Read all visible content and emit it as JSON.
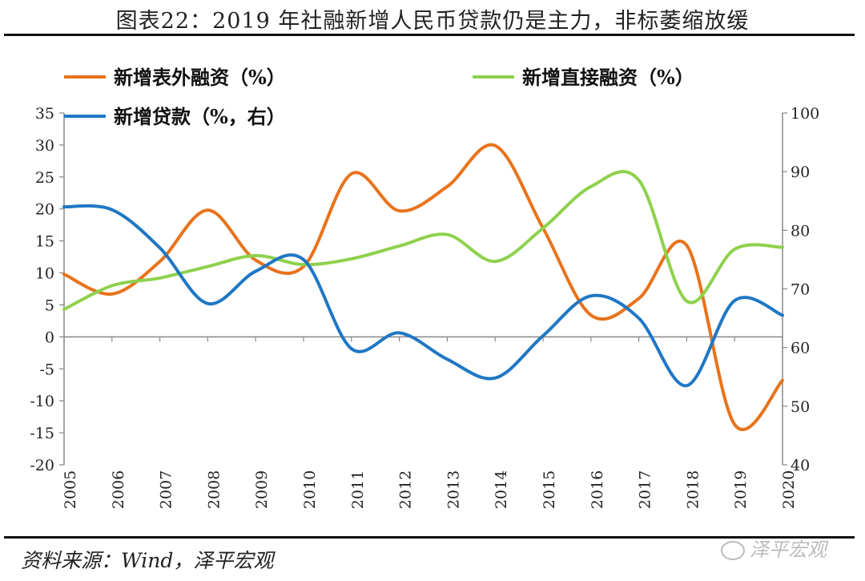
{
  "header": {
    "title": "图表22：2019 年社融新增人民币贷款仍是主力，非标萎缩放缓"
  },
  "footer": {
    "source": "资料来源：Wind，泽平宏观",
    "watermark": "泽平宏观"
  },
  "chart_data": {
    "type": "line",
    "title": "",
    "x": [
      "2005",
      "2006",
      "2007",
      "2008",
      "2009",
      "2010",
      "2011",
      "2012",
      "2013",
      "2014",
      "2015",
      "2016",
      "2017",
      "2018",
      "2019",
      "2020"
    ],
    "y_left": {
      "lim": [
        -20,
        35
      ],
      "ticks": [
        35,
        30,
        25,
        20,
        15,
        10,
        5,
        0,
        -5,
        -10,
        -15,
        -20
      ]
    },
    "y_right": {
      "lim": [
        40,
        100
      ],
      "ticks": [
        100,
        90,
        80,
        70,
        60,
        50,
        40
      ]
    },
    "grid": false,
    "legend_position": "top",
    "series": [
      {
        "name": "新增表外融资（%）",
        "axis": "left",
        "color": "#E8731B",
        "values": [
          9.8,
          6.7,
          11.8,
          19.8,
          12.0,
          11.0,
          25.5,
          19.7,
          23.5,
          29.9,
          17.0,
          3.4,
          6.0,
          14.3,
          -13.7,
          -6.8
        ]
      },
      {
        "name": "新增直接融资（%）",
        "axis": "left",
        "color": "#8ED14D",
        "values": [
          4.3,
          8.0,
          9.2,
          11.0,
          12.7,
          11.3,
          12.2,
          14.2,
          16.0,
          11.8,
          17.0,
          23.5,
          24.5,
          5.6,
          13.7,
          14.0
        ]
      },
      {
        "name": "新增贷款（%，右）",
        "axis": "right",
        "color": "#1F77C4",
        "values": [
          84.0,
          83.5,
          77.0,
          67.5,
          73.0,
          75.0,
          59.8,
          62.5,
          58.0,
          54.8,
          62.0,
          68.8,
          65.0,
          53.5,
          68.0,
          65.5
        ]
      }
    ]
  }
}
